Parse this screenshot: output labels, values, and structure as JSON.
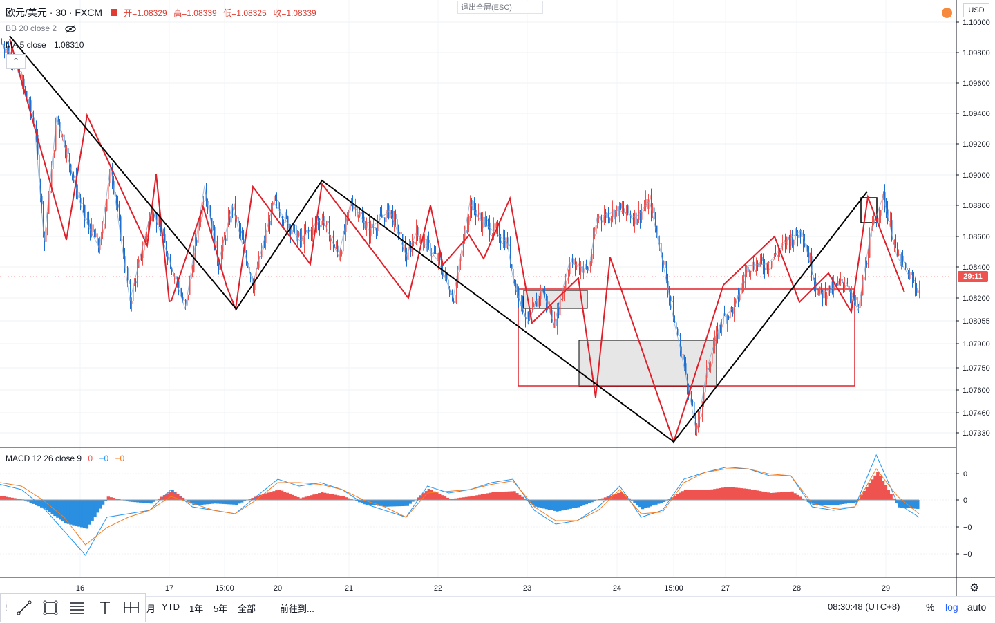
{
  "legend": {
    "symbol": "欧元/美元 · 30 · FXCM",
    "open": "开=1.08329",
    "high": "高=1.08339",
    "low": "低=1.08325",
    "close": "收=1.08339"
  },
  "indicators": {
    "bb": "BB 20 close 2",
    "ma": "MA 5 close",
    "ma_value": "1.08310",
    "macd": "MACD 12 26 close 9",
    "macd_vals": [
      "0",
      "−0",
      "−0"
    ]
  },
  "esc_button": "退出全屏(ESC)",
  "currency": "USD",
  "price_badge": "29:11",
  "bottom_bar": {
    "ranges": [
      "月",
      "YTD",
      "1年",
      "5年",
      "全部"
    ],
    "goto": "前往到...",
    "clock": "08:30:48 (UTC+8)",
    "percent": "%",
    "log": "log",
    "auto": "auto"
  },
  "colors": {
    "up": "#ef5350",
    "down": "#1e6fd0",
    "zigzag_red": "#e0202a",
    "zigzag_black": "#000000",
    "macd_line": "#2196f3",
    "signal_line": "#f57c1f"
  },
  "chart_data": [
    {
      "type": "candlestick",
      "title": "欧元/美元 · 30 · FXCM",
      "x_tick_labels": [
        "16",
        "17",
        "15:00",
        "20",
        "21",
        "22",
        "23",
        "24",
        "15:00",
        "27",
        "28",
        "29"
      ],
      "y_tick_labels": [
        "1.10000",
        "1.09800",
        "1.09600",
        "1.09400",
        "1.09200",
        "1.09000",
        "1.08800",
        "1.08600",
        "1.08400",
        "1.08200",
        "1.08055",
        "1.07900",
        "1.07750",
        "1.07600",
        "1.07460",
        "1.07330"
      ],
      "ylim": [
        1.0725,
        1.1005
      ],
      "y_scale": "log",
      "current_price": 1.08339,
      "close_path": [
        [
          0,
          1.0986
        ],
        [
          8,
          1.0978
        ],
        [
          14,
          1.0962
        ],
        [
          24,
          1.0932
        ],
        [
          31,
          1.0857
        ],
        [
          40,
          1.0938
        ],
        [
          60,
          1.0872
        ],
        [
          71,
          1.0852
        ],
        [
          79,
          1.0906
        ],
        [
          93,
          1.0818
        ],
        [
          109,
          1.0879
        ],
        [
          133,
          1.0813
        ],
        [
          147,
          1.0893
        ],
        [
          157,
          1.0842
        ],
        [
          167,
          1.088
        ],
        [
          182,
          1.0829
        ],
        [
          197,
          1.0882
        ],
        [
          216,
          1.0857
        ],
        [
          232,
          1.0872
        ],
        [
          244,
          1.0847
        ],
        [
          253,
          1.0883
        ],
        [
          266,
          1.0864
        ],
        [
          281,
          1.0877
        ],
        [
          293,
          1.0847
        ],
        [
          300,
          1.0862
        ],
        [
          316,
          1.0844
        ],
        [
          327,
          1.082
        ],
        [
          339,
          1.0882
        ],
        [
          346,
          1.0871
        ],
        [
          366,
          1.0856
        ],
        [
          371,
          1.0829
        ],
        [
          381,
          1.0804
        ],
        [
          391,
          1.0826
        ],
        [
          400,
          1.0803
        ],
        [
          411,
          1.0843
        ],
        [
          425,
          1.0838
        ],
        [
          431,
          1.0872
        ],
        [
          447,
          1.0877
        ],
        [
          459,
          1.0872
        ],
        [
          469,
          1.0883
        ],
        [
          478,
          1.0846
        ],
        [
          487,
          1.0804
        ],
        [
          491,
          1.0788
        ],
        [
          497,
          1.0762
        ],
        [
          503,
          1.0733
        ],
        [
          511,
          1.0776
        ],
        [
          521,
          1.0806
        ],
        [
          531,
          1.0815
        ],
        [
          540,
          1.0841
        ],
        [
          555,
          1.0842
        ],
        [
          568,
          1.0857
        ],
        [
          579,
          1.0864
        ],
        [
          591,
          1.0822
        ],
        [
          601,
          1.0826
        ],
        [
          611,
          1.0831
        ],
        [
          620,
          1.0812
        ],
        [
          629,
          1.0862
        ],
        [
          638,
          1.0886
        ],
        [
          648,
          1.0847
        ],
        [
          657,
          1.0834
        ],
        [
          666,
          1.0821
        ],
        [
          676,
          1.0826
        ]
      ]
    },
    {
      "type": "line",
      "title": "MACD 12 26 close 9",
      "y_tick_labels": [
        "0",
        "0",
        "−0",
        "−0"
      ],
      "series": [
        {
          "name": "MACD",
          "values": [
            0.45,
            0.3,
            -0.2,
            -0.9,
            -1.6,
            -0.5,
            -0.4,
            -0.3,
            0.3,
            -0.2,
            -0.3,
            -0.4,
            0.1,
            0.6,
            0.4,
            0.5,
            0.3,
            -0.1,
            -0.3,
            -0.5,
            0.4,
            0.2,
            0.3,
            0.5,
            0.6,
            -0.3,
            -0.7,
            -0.6,
            -0.2,
            0.4,
            -0.5,
            -0.3,
            0.6,
            0.8,
            0.95,
            0.9,
            0.7,
            0.7,
            -0.2,
            -0.3,
            -0.2,
            1.3,
            -0.1,
            -0.5
          ]
        },
        {
          "name": "Signal",
          "values": [
            0.5,
            0.4,
            0.0,
            -0.5,
            -1.3,
            -0.8,
            -0.5,
            -0.3,
            0.1,
            -0.1,
            -0.3,
            -0.4,
            0.0,
            0.5,
            0.5,
            0.45,
            0.3,
            0.0,
            -0.2,
            -0.5,
            0.2,
            0.25,
            0.3,
            0.45,
            0.55,
            -0.2,
            -0.6,
            -0.6,
            -0.3,
            0.3,
            -0.4,
            -0.35,
            0.5,
            0.8,
            0.9,
            0.9,
            0.75,
            0.7,
            -0.1,
            -0.25,
            -0.2,
            0.9,
            0.1,
            -0.4
          ]
        }
      ]
    }
  ]
}
